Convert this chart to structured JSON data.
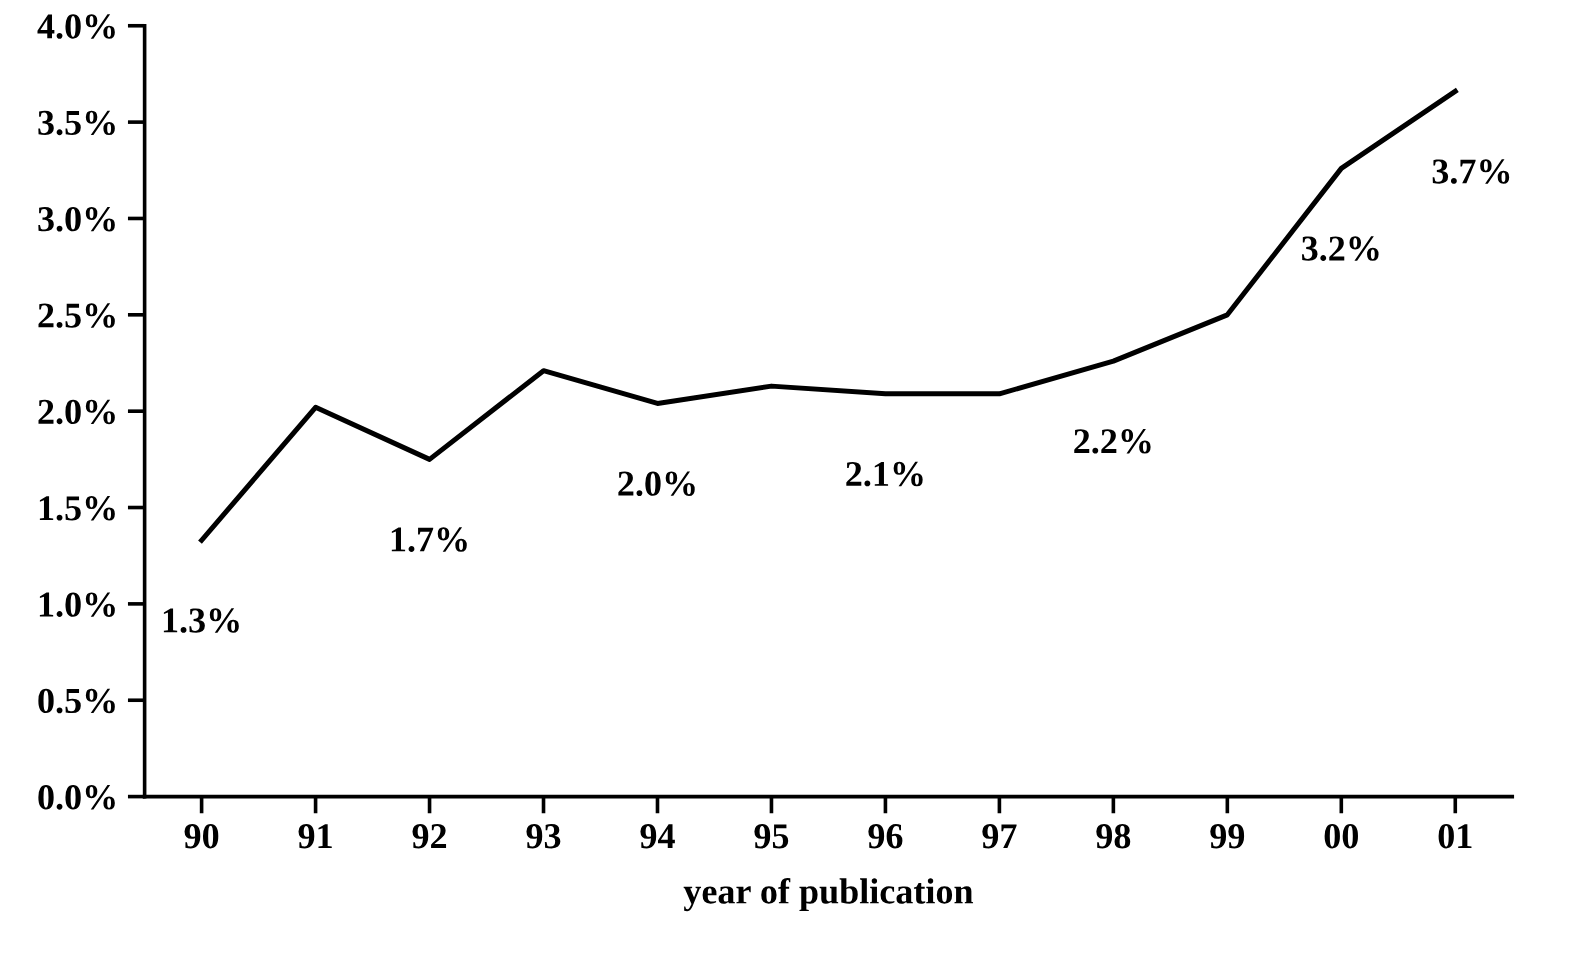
{
  "chart_data": {
    "type": "line",
    "xlabel": "year of publication",
    "categories": [
      "90",
      "91",
      "92",
      "93",
      "94",
      "95",
      "96",
      "97",
      "98",
      "99",
      "00",
      "01"
    ],
    "series": [
      {
        "color": "#000000",
        "values": [
          1.33,
          2.02,
          1.75,
          2.21,
          2.04,
          2.13,
          2.09,
          2.09,
          2.26,
          2.5,
          3.26,
          3.66
        ]
      }
    ],
    "ylim": [
      0,
      4
    ],
    "yticks": [
      {
        "value": 0,
        "label": "0.0%"
      },
      {
        "value": 0.5,
        "label": "0.5%"
      },
      {
        "value": 1,
        "label": "1.0%"
      },
      {
        "value": 1.5,
        "label": "1.5%"
      },
      {
        "value": 2,
        "label": "2.0%"
      },
      {
        "value": 2.5,
        "label": "2.5%"
      },
      {
        "value": 3,
        "label": "3.0%"
      },
      {
        "value": 3.5,
        "label": "3.5%"
      },
      {
        "value": 4,
        "label": "4.0%"
      }
    ],
    "grid": false,
    "legend": false,
    "marker": "none",
    "line_style": "solid",
    "annotations": [
      {
        "text": "1.3%",
        "x": "90",
        "y": 1.33
      },
      {
        "text": "1.7%",
        "x": "92",
        "y": 1.75
      },
      {
        "text": "2.0%",
        "x": "94",
        "y": 2.04
      },
      {
        "text": "2.1%",
        "x": "96",
        "y": 2.09
      },
      {
        "text": "2.2%",
        "x": "98",
        "y": 2.26
      },
      {
        "text": "3.2%",
        "x": "00",
        "y": 3.26
      },
      {
        "text": "3.7%",
        "x": "01",
        "y": 3.66
      }
    ]
  }
}
